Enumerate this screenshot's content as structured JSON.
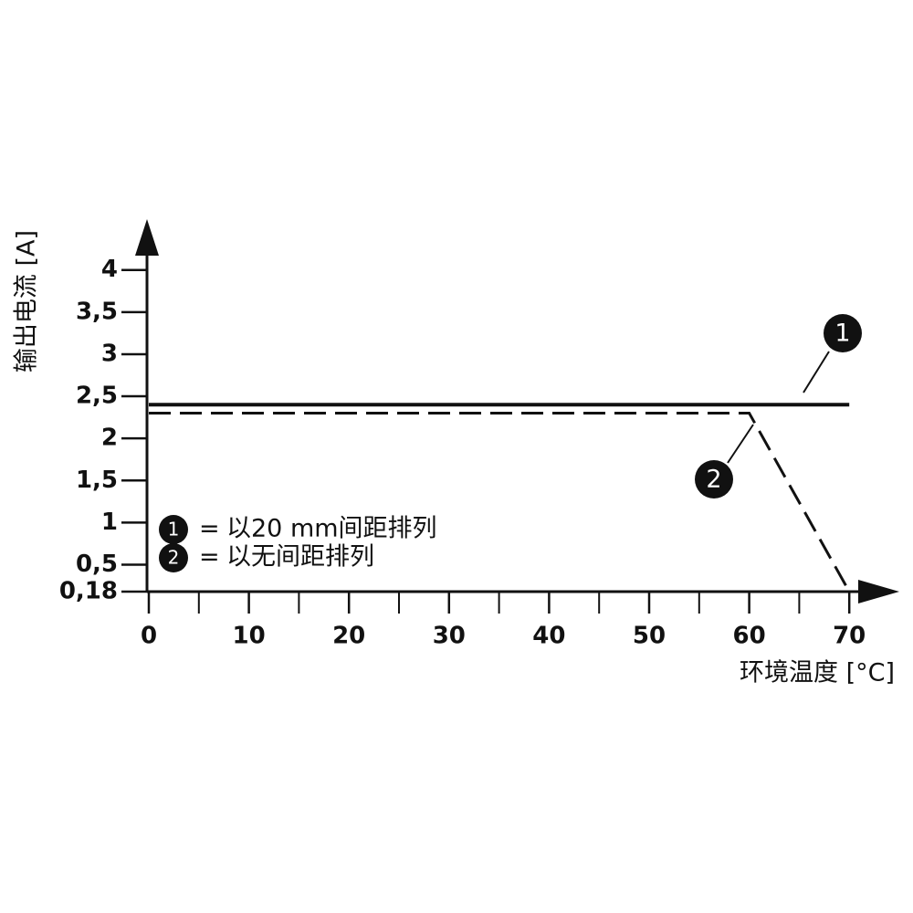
{
  "chart_data": {
    "type": "line",
    "x_label": "环境温度 [°C]",
    "y_label": "输出电流 [A]",
    "xlim": [
      0,
      75
    ],
    "ylim": [
      0.18,
      4.55
    ],
    "xticks": [
      0,
      10,
      20,
      30,
      40,
      50,
      60,
      70
    ],
    "xminorticks": [
      5,
      15,
      25,
      35,
      45,
      55,
      65
    ],
    "yticks": [
      {
        "value": 0.18,
        "label": "0,18"
      },
      {
        "value": 0.5,
        "label": "0,5"
      },
      1,
      {
        "value": 1.5,
        "label": "1,5"
      },
      2,
      {
        "value": 2.5,
        "label": "2,5"
      },
      3,
      {
        "value": 3.5,
        "label": "3,5"
      },
      4
    ],
    "legend_separator": "=",
    "series": [
      {
        "name": "以20 mm间距排列",
        "label": "1",
        "color": "#111111",
        "style": "solid",
        "x": [
          0,
          70
        ],
        "values": [
          2.4,
          2.4
        ]
      },
      {
        "name": "以无间距排列",
        "label": "2",
        "color": "#111111",
        "style": "dashed",
        "x": [
          0,
          60,
          70
        ],
        "values": [
          2.3,
          2.3,
          0.18
        ]
      }
    ]
  }
}
